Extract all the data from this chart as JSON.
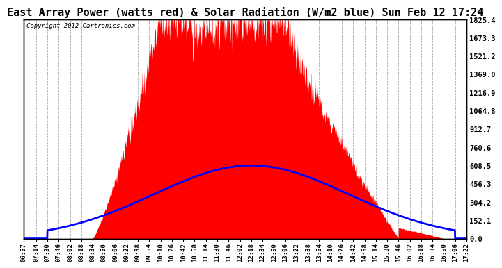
{
  "title": "East Array Power (watts red) & Solar Radiation (W/m2 blue) Sun Feb 12 17:24",
  "copyright": "Copyright 2012 Cartronics.com",
  "title_fontsize": 11,
  "background_color": "#ffffff",
  "plot_bg_color": "#ffffff",
  "grid_color": "#aaaaaa",
  "grid_style": "--",
  "ymin": 0.0,
  "ymax": 1825.4,
  "yticks": [
    0.0,
    152.1,
    304.2,
    456.3,
    608.5,
    760.6,
    912.7,
    1064.8,
    1216.9,
    1369.0,
    1521.2,
    1673.3,
    1825.4
  ],
  "time_labels": [
    "06:57",
    "07:14",
    "07:30",
    "07:46",
    "08:02",
    "08:18",
    "08:34",
    "08:50",
    "09:06",
    "09:22",
    "09:38",
    "09:54",
    "10:10",
    "10:26",
    "10:42",
    "10:58",
    "11:14",
    "11:30",
    "11:46",
    "12:02",
    "12:18",
    "12:34",
    "12:50",
    "13:06",
    "13:22",
    "13:38",
    "13:54",
    "14:10",
    "14:26",
    "14:42",
    "14:58",
    "15:14",
    "15:30",
    "15:46",
    "16:02",
    "16:18",
    "16:34",
    "16:50",
    "17:06",
    "17:22"
  ],
  "red_color": "#ff0000",
  "blue_color": "#0000ff",
  "red_alpha": 1.0,
  "blue_linewidth": 2.0,
  "peak_red_max": 1825.4,
  "peak_blue_max": 608.5,
  "red_rise_start": "08:34",
  "red_rise_end": "10:10",
  "red_plateau_end": "13:06",
  "red_fall_end": "15:46",
  "red_tail_end": "16:50",
  "blue_rise_start": "07:30",
  "blue_peak": "12:18",
  "blue_fall_end": "17:06"
}
